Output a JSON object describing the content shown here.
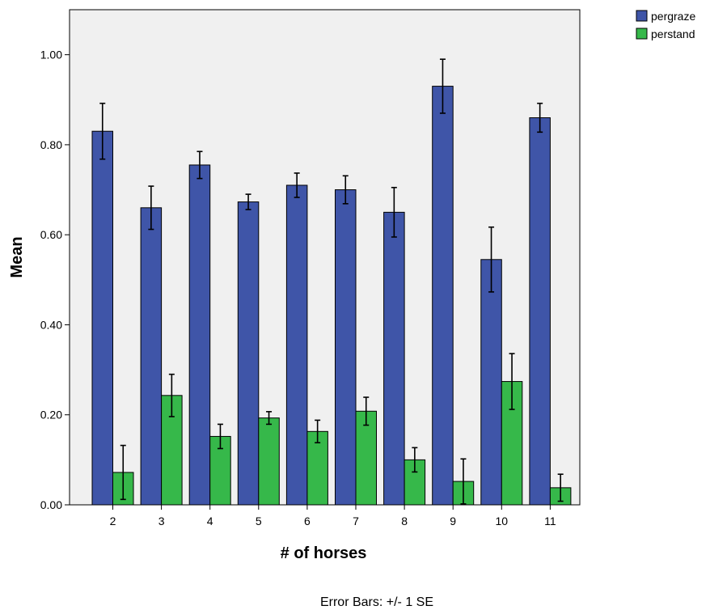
{
  "chart_data": {
    "type": "bar",
    "title": "",
    "xlabel": "# of horses",
    "ylabel": "Mean",
    "categories": [
      "2",
      "3",
      "4",
      "5",
      "6",
      "7",
      "8",
      "9",
      "10",
      "11"
    ],
    "ylim": [
      0,
      1.1
    ],
    "yticks": [
      0.0,
      0.2,
      0.4,
      0.6,
      0.8,
      1.0
    ],
    "ytick_labels": [
      "0.00",
      "0.20",
      "0.40",
      "0.60",
      "0.80",
      "1.00"
    ],
    "grid": false,
    "legend_position": "top-right",
    "series": [
      {
        "name": "pergraze",
        "color": "#3F55A8",
        "values": [
          0.83,
          0.66,
          0.755,
          0.673,
          0.71,
          0.7,
          0.65,
          0.93,
          0.545,
          0.86
        ],
        "errors": [
          0.062,
          0.048,
          0.03,
          0.017,
          0.027,
          0.031,
          0.055,
          0.06,
          0.072,
          0.032
        ]
      },
      {
        "name": "perstand",
        "color": "#36B84A",
        "values": [
          0.072,
          0.243,
          0.152,
          0.193,
          0.163,
          0.208,
          0.1,
          0.052,
          0.274,
          0.038
        ],
        "errors": [
          0.06,
          0.047,
          0.027,
          0.014,
          0.025,
          0.031,
          0.027,
          0.05,
          0.062,
          0.03
        ]
      }
    ],
    "footnote": "Error Bars: +/- 1 SE"
  }
}
